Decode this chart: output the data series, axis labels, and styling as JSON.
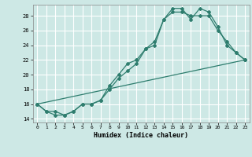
{
  "xlabel": "Humidex (Indice chaleur)",
  "ylabel": "",
  "xlim": [
    -0.5,
    23.5
  ],
  "ylim": [
    13.5,
    29.5
  ],
  "yticks": [
    14,
    16,
    18,
    20,
    22,
    24,
    26,
    28
  ],
  "xticks": [
    0,
    1,
    2,
    3,
    4,
    5,
    6,
    7,
    8,
    9,
    10,
    11,
    12,
    13,
    14,
    15,
    16,
    17,
    18,
    19,
    20,
    21,
    22,
    23
  ],
  "background_color": "#cde8e5",
  "grid_color": "#ffffff",
  "line_color": "#2e7d6e",
  "series1_x": [
    0,
    1,
    2,
    3,
    4,
    5,
    6,
    7,
    8,
    9,
    10,
    11,
    12,
    13,
    14,
    15,
    16,
    17,
    18,
    19,
    20,
    21,
    22,
    23
  ],
  "series1_y": [
    16,
    15,
    15,
    14.5,
    15,
    16,
    16,
    16.5,
    18,
    19.5,
    20.5,
    21.5,
    23.5,
    24,
    27.5,
    29,
    29,
    27.5,
    29,
    28.5,
    26.5,
    24,
    23,
    22
  ],
  "series2_x": [
    0,
    1,
    2,
    3,
    4,
    5,
    6,
    7,
    8,
    9,
    10,
    11,
    12,
    13,
    14,
    15,
    16,
    17,
    18,
    19,
    20,
    21,
    22,
    23
  ],
  "series2_y": [
    16,
    15,
    14.5,
    14.5,
    15,
    16,
    16,
    16.5,
    18.5,
    20,
    21.5,
    22,
    23.5,
    24.5,
    27.5,
    28.5,
    28.5,
    28,
    28,
    28,
    26,
    24.5,
    23,
    22
  ],
  "series3_x": [
    0,
    23
  ],
  "series3_y": [
    16,
    22
  ]
}
